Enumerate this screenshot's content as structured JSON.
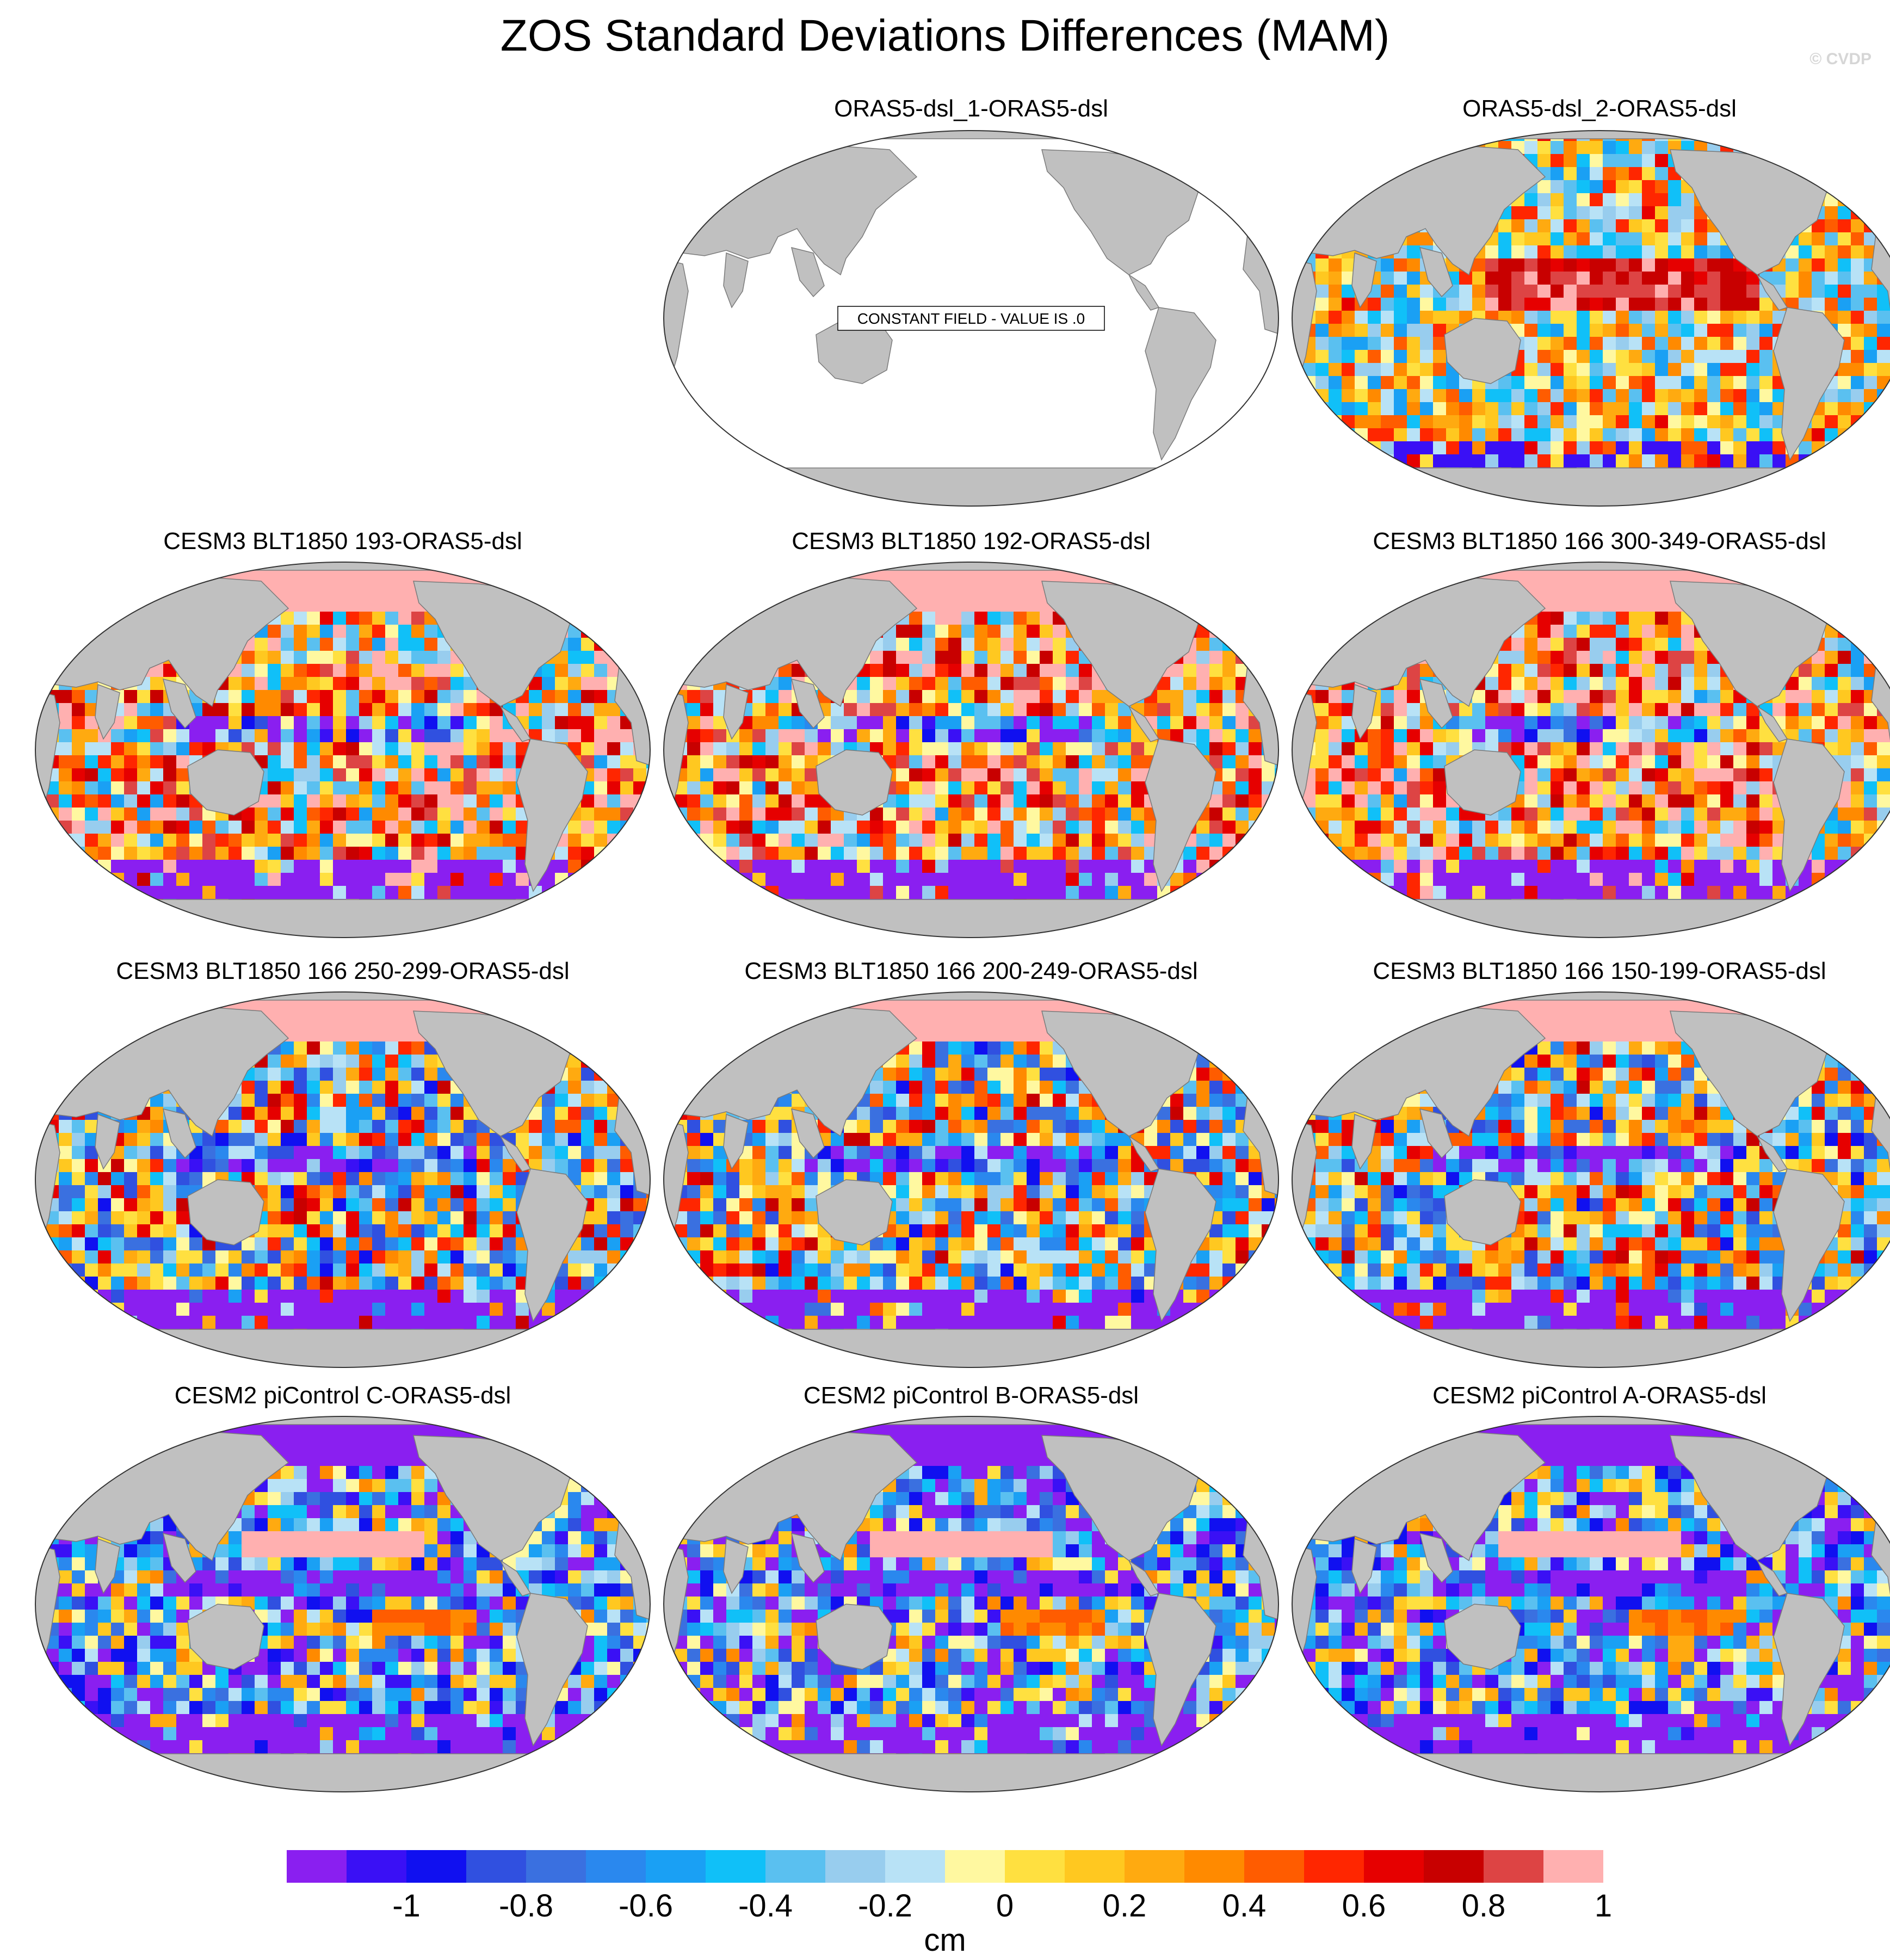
{
  "title": "ZOS Standard Deviations Differences (MAM)",
  "watermark": "© CVDP",
  "panels": [
    {
      "title": "ORAS5-dsl_1-ORAS5-dsl",
      "mode": "constant",
      "note": "CONSTANT FIELD - VALUE IS .0"
    },
    {
      "title": "ORAS5-dsl_2-ORAS5-dsl",
      "mode": "mixed"
    },
    {
      "title": "CESM3 BLT1850 193-ORAS5-dsl",
      "mode": "positive"
    },
    {
      "title": "CESM3 BLT1850 192-ORAS5-dsl",
      "mode": "positive"
    },
    {
      "title": "CESM3 BLT1850 166 300-349-ORAS5-dsl",
      "mode": "positive"
    },
    {
      "title": "CESM3 BLT1850 166 250-299-ORAS5-dsl",
      "mode": "negative"
    },
    {
      "title": "CESM3 BLT1850 166 200-249-ORAS5-dsl",
      "mode": "negative"
    },
    {
      "title": "CESM3 BLT1850 166 150-199-ORAS5-dsl",
      "mode": "negative"
    },
    {
      "title": "CESM2 piControl C-ORAS5-dsl",
      "mode": "strong-negative"
    },
    {
      "title": "CESM2 piControl B-ORAS5-dsl",
      "mode": "strong-negative"
    },
    {
      "title": "CESM2 piControl A-ORAS5-dsl",
      "mode": "strong-negative"
    }
  ],
  "colorbar": {
    "colors": [
      "#8a1ff0",
      "#3a10f5",
      "#1010f0",
      "#3050e0",
      "#3a70e0",
      "#2a88ee",
      "#1aa0f4",
      "#10c0f8",
      "#5ac0f0",
      "#98cdee",
      "#b8e2f6",
      "#fff8a0",
      "#ffe040",
      "#ffc820",
      "#ffaa10",
      "#ff8a00",
      "#ff5c00",
      "#ff2600",
      "#e60000",
      "#c80000",
      "#dd4444",
      "#ffb0b0"
    ],
    "tick_labels": [
      "-1",
      "-0.8",
      "-0.6",
      "-0.4",
      "-0.2",
      "0",
      "0.2",
      "0.4",
      "0.6",
      "0.8",
      "1"
    ],
    "units": "cm"
  },
  "land_color": "#c0c0c0"
}
